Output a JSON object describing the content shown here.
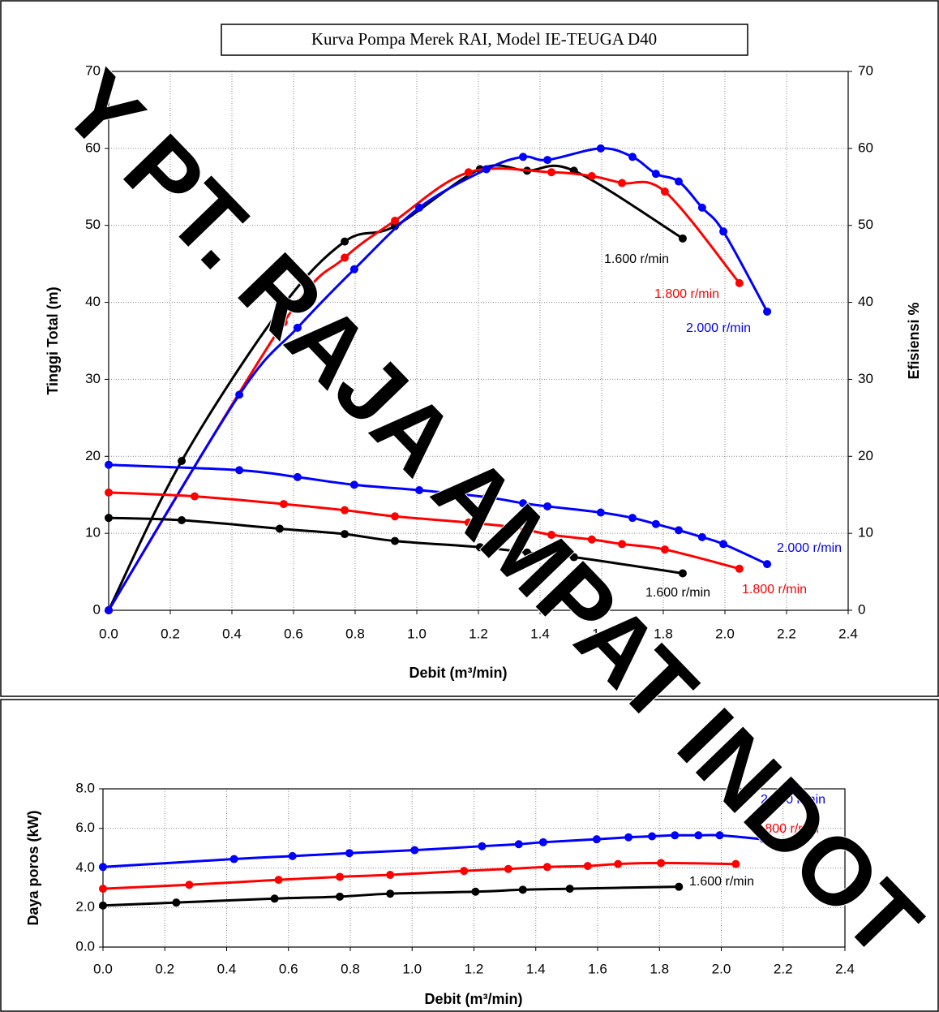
{
  "watermark": "Y PT. RAJA AMPAT INDOT",
  "chart_data": [
    {
      "type": "line",
      "title": "Kurva Pompa Merek RAI, Model IE-TEUGA D40",
      "x_label": "Debit (m³/min)",
      "y_label": "Tinggi Total (m)",
      "y2_label": "Efisiensi %",
      "xlim": [
        0,
        2.4
      ],
      "ylim": [
        0,
        70
      ],
      "y2lim": [
        0,
        70
      ],
      "grid": true,
      "xticks": [
        {
          "value": 0,
          "label": "0.0"
        },
        0.2,
        0.4,
        0.6,
        0.8,
        {
          "value": 1,
          "label": "1.0"
        },
        1.2,
        1.4,
        1.6,
        1.8,
        {
          "value": 2,
          "label": "2.0"
        },
        2.2,
        2.4
      ],
      "yticks": [
        0,
        10,
        20,
        30,
        40,
        50,
        60,
        70
      ],
      "y2ticks": [
        0,
        10,
        20,
        30,
        40,
        50,
        60,
        70
      ],
      "series": [
        {
          "name": "1.600 r/min",
          "color": "#000000",
          "axis": "y2",
          "x": [
            0,
            0.237,
            0.555,
            0.766,
            0.929,
            1.205,
            1.358,
            1.51,
            1.863
          ],
          "values": [
            0,
            19.4,
            39.0,
            47.9,
            49.9,
            57.3,
            57.1,
            57.1,
            48.3
          ]
        },
        {
          "name": "1.800 r/min",
          "color": "#ff0000",
          "axis": "y2",
          "x": [
            0,
            0.568,
            0.766,
            0.929,
            1.168,
            1.437,
            1.568,
            1.666,
            1.805,
            2.047
          ],
          "values": [
            0,
            37.4,
            45.8,
            50.6,
            56.9,
            56.9,
            56.4,
            55.5,
            54.4,
            42.5
          ]
        },
        {
          "name": "2.000 r/min",
          "color": "#0000ff",
          "axis": "y2",
          "x": [
            0,
            0.424,
            0.613,
            0.797,
            1.008,
            1.226,
            1.345,
            1.424,
            1.597,
            1.7,
            1.776,
            1.85,
            1.926,
            1.995,
            2.137
          ],
          "values": [
            0,
            28.0,
            36.7,
            44.3,
            52.3,
            57.3,
            58.9,
            58.5,
            60.0,
            58.9,
            56.7,
            55.7,
            52.3,
            49.2,
            38.8
          ]
        },
        {
          "name": "1.600 r/min",
          "color": "#000000",
          "x": [
            0,
            0.237,
            0.555,
            0.766,
            0.929,
            1.205,
            1.358,
            1.51,
            1.863
          ],
          "values": [
            12.0,
            11.7,
            10.6,
            9.9,
            9.0,
            8.2,
            7.5,
            6.9,
            4.8
          ]
        },
        {
          "name": "1.800 r/min",
          "color": "#ff0000",
          "x": [
            0,
            0.279,
            0.568,
            0.766,
            0.929,
            1.168,
            1.311,
            1.437,
            1.568,
            1.666,
            1.805,
            2.047
          ],
          "values": [
            15.3,
            14.8,
            13.8,
            13.0,
            12.2,
            11.4,
            10.8,
            9.8,
            9.2,
            8.6,
            7.9,
            5.4
          ]
        },
        {
          "name": "2.000 r/min",
          "color": "#0000ff",
          "x": [
            0,
            0.424,
            0.613,
            0.797,
            1.008,
            1.226,
            1.345,
            1.424,
            1.597,
            1.7,
            1.776,
            1.85,
            1.926,
            1.995,
            2.137
          ],
          "values": [
            18.9,
            18.2,
            17.3,
            16.3,
            15.6,
            14.7,
            13.9,
            13.5,
            12.7,
            12.0,
            11.2,
            10.4,
            9.5,
            8.6,
            6.0
          ]
        }
      ]
    },
    {
      "type": "line",
      "x_label": "Debit (m³/min)",
      "y_label": "Daya poros (kW)",
      "xlim": [
        0,
        2.4
      ],
      "ylim": [
        0,
        8
      ],
      "grid": true,
      "xticks": [
        {
          "value": 0,
          "label": "0.0"
        },
        0.2,
        0.4,
        0.6,
        0.8,
        {
          "value": 1,
          "label": "1.0"
        },
        1.2,
        1.4,
        1.6,
        1.8,
        {
          "value": 2,
          "label": "2.0"
        },
        2.2,
        2.4
      ],
      "yticks": [
        {
          "value": 0,
          "label": "0.0"
        },
        {
          "value": 2,
          "label": "2.0"
        },
        {
          "value": 4,
          "label": "4.0"
        },
        {
          "value": 6,
          "label": "6.0"
        },
        {
          "value": 8,
          "label": "8.0"
        }
      ],
      "series": [
        {
          "name": "1.600 r/min",
          "color": "#000000",
          "x": [
            0,
            0.237,
            0.555,
            0.766,
            0.929,
            1.205,
            1.358,
            1.51,
            1.863
          ],
          "values": [
            2.1,
            2.25,
            2.45,
            2.55,
            2.7,
            2.8,
            2.9,
            2.95,
            3.05
          ]
        },
        {
          "name": "1.800 r/min",
          "color": "#ff0000",
          "x": [
            0,
            0.279,
            0.568,
            0.766,
            0.929,
            1.168,
            1.311,
            1.437,
            1.568,
            1.666,
            1.805,
            2.047
          ],
          "values": [
            2.95,
            3.15,
            3.4,
            3.55,
            3.65,
            3.85,
            3.95,
            4.05,
            4.1,
            4.2,
            4.25,
            4.2
          ]
        },
        {
          "name": "2.000 r/min",
          "color": "#0000ff",
          "x": [
            0,
            0.424,
            0.613,
            0.797,
            1.008,
            1.226,
            1.345,
            1.424,
            1.597,
            1.7,
            1.776,
            1.85,
            1.926,
            1.995,
            2.137
          ],
          "values": [
            4.05,
            4.45,
            4.6,
            4.75,
            4.9,
            5.1,
            5.2,
            5.3,
            5.45,
            5.55,
            5.6,
            5.65,
            5.65,
            5.65,
            5.45
          ]
        }
      ]
    }
  ]
}
